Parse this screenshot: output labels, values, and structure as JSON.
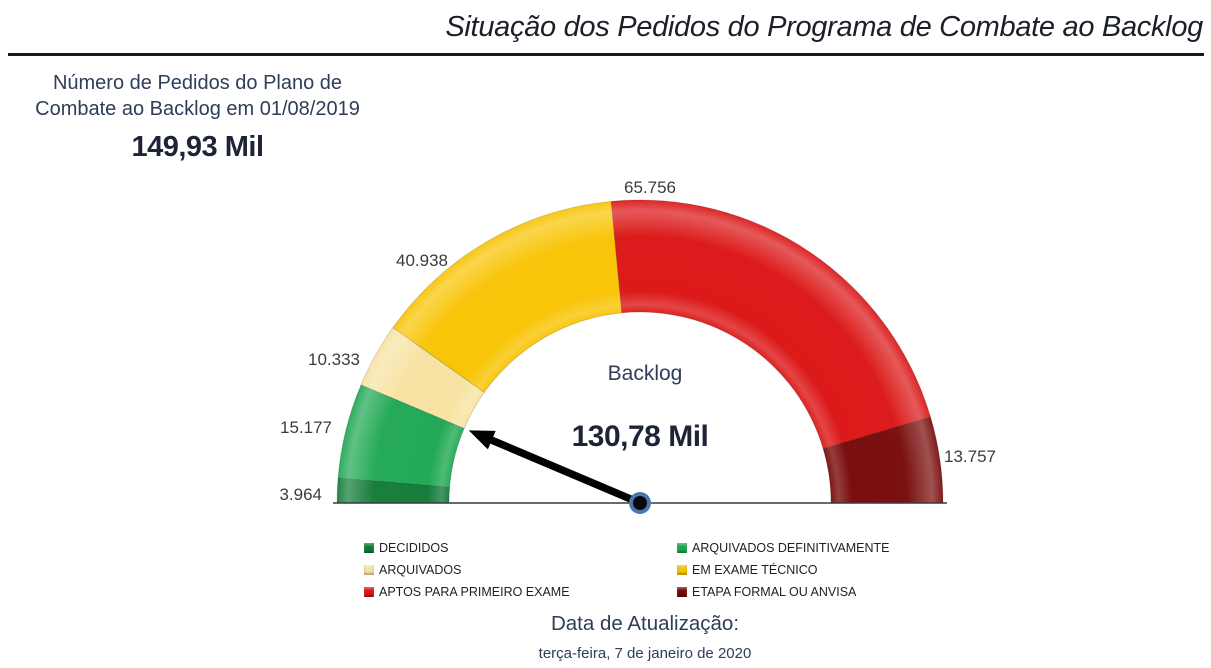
{
  "header": {
    "title": "Situação dos Pedidos do Programa de Combate ao Backlog"
  },
  "card": {
    "title_line1": "Número de Pedidos do Plano de",
    "title_line2": "Combate ao Backlog em 01/08/2019",
    "value": "149,93 Mil"
  },
  "chart_data": {
    "type": "gauge",
    "title": "Backlog",
    "arc_span_deg": 180,
    "total_value": 149925,
    "total_label": "149,93 Mil",
    "needle_value": 130784,
    "needle_label": "130,78 Mil",
    "needle_color": "#000000",
    "pivot_ring_color": "#4B77AE",
    "segments": [
      {
        "name": "DECIDIDOS",
        "value": 3964,
        "label": "3.964",
        "color": "#0F7A36"
      },
      {
        "name": "ARQUIVADOS DEFINITIVAMENTE",
        "value": 15177,
        "label": "15.177",
        "color": "#1DA751"
      },
      {
        "name": "ARQUIVADOS",
        "value": 10333,
        "label": "10.333",
        "color": "#F7E3A1"
      },
      {
        "name": "EM EXAME TÉCNICO",
        "value": 40938,
        "label": "40.938",
        "color": "#F8C300"
      },
      {
        "name": "APTOS PARA PRIMEIRO EXAME",
        "value": 65756,
        "label": "65.756",
        "color": "#DB1313"
      },
      {
        "name": "ETAPA FORMAL OU ANVISA",
        "value": 13757,
        "label": "13.757",
        "color": "#760707"
      }
    ]
  },
  "legend": {
    "left": [
      {
        "label": "DECIDIDOS",
        "color": "#0F7A36"
      },
      {
        "label": "ARQUIVADOS",
        "color": "#F7E3A1"
      },
      {
        "label": "APTOS PARA PRIMEIRO EXAME",
        "color": "#DB1313"
      }
    ],
    "right": [
      {
        "label": "ARQUIVADOS DEFINITIVAMENTE",
        "color": "#1DA751"
      },
      {
        "label": "EM EXAME TÉCNICO",
        "color": "#F8C300"
      },
      {
        "label": "ETAPA FORMAL OU ANVISA",
        "color": "#760707"
      }
    ]
  },
  "footer": {
    "label": "Data de Atualização:",
    "date": "terça-feira, 7 de janeiro de 2020"
  }
}
